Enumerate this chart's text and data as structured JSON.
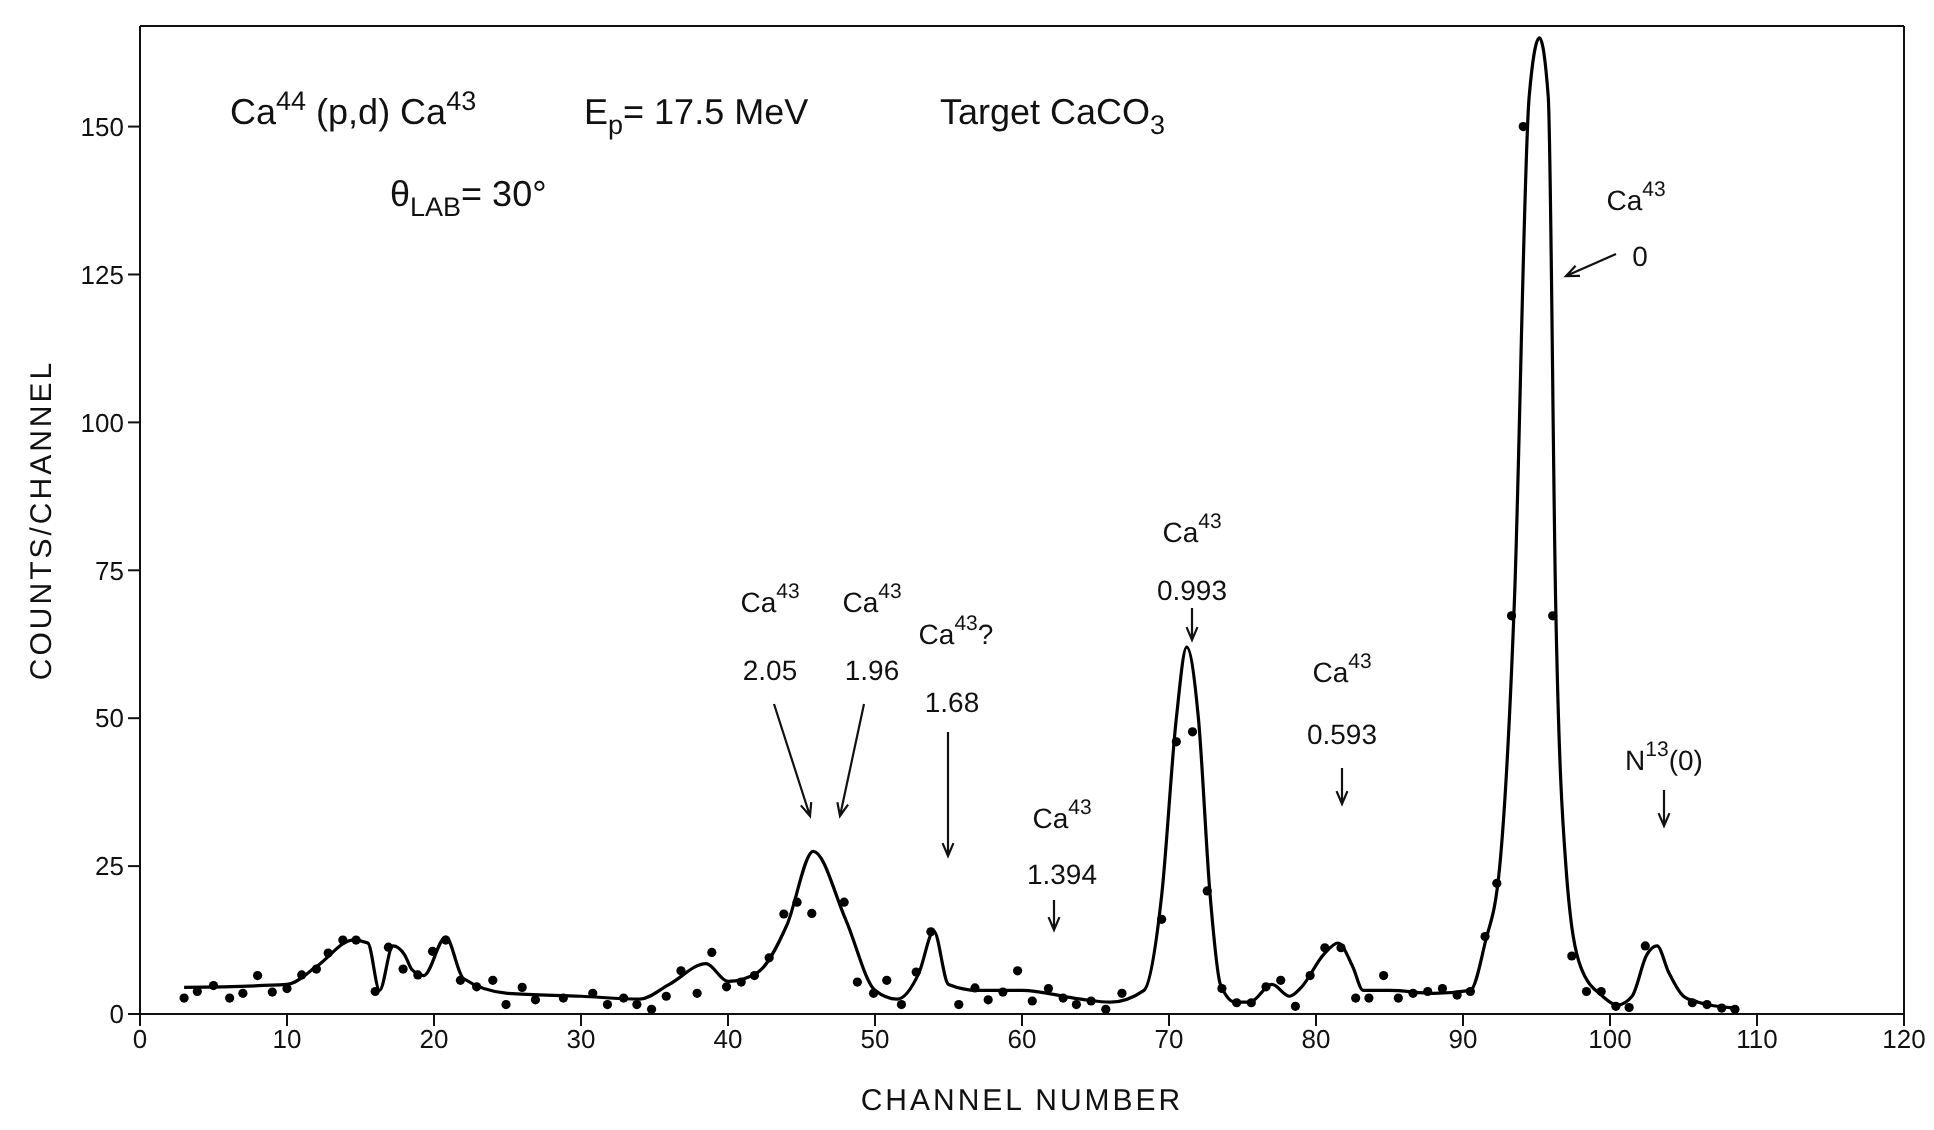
{
  "chart_data": {
    "type": "line",
    "xlabel": "CHANNEL NUMBER",
    "ylabel": "COUNTS/CHANNEL",
    "xlim": [
      0,
      120
    ],
    "xticks": [
      0,
      10,
      20,
      30,
      40,
      50,
      60,
      70,
      80,
      90,
      100,
      110,
      120
    ],
    "ylim": [
      0,
      167
    ],
    "yticks": [
      0,
      25,
      50,
      75,
      100,
      125,
      150
    ],
    "series": [
      {
        "color": "#000000",
        "marker": "none",
        "line_style": "solid",
        "x": [
          3,
          10,
          12,
          14.5,
          15.5,
          16.3,
          17.2,
          18,
          18.5,
          19.3,
          20.8,
          22,
          25,
          30,
          34,
          36,
          38.5,
          40,
          42,
          44,
          45.8,
          48,
          50,
          51.5,
          53,
          54,
          55,
          57,
          60,
          64,
          66,
          68.3,
          69.5,
          70.5,
          71.2,
          72,
          72.8,
          73.5,
          74.5,
          75.5,
          77,
          78.2,
          79,
          80.5,
          81.5,
          82.5,
          83.2,
          85,
          88,
          90.5,
          91.5,
          92.5,
          93.5,
          94.5,
          95.2,
          95.8,
          96.3,
          97,
          98,
          99.5,
          100.5,
          101.5,
          102.5,
          103.2,
          104,
          105,
          106,
          108.5
        ],
        "values": [
          4.5,
          5,
          8,
          12.5,
          12,
          4,
          11.5,
          10,
          7.5,
          6.5,
          13,
          6,
          3.5,
          3,
          2.5,
          5,
          8.5,
          5.5,
          7,
          15,
          27.5,
          16,
          4,
          2.5,
          7,
          14,
          5,
          4,
          4,
          2.5,
          2,
          4,
          20,
          50,
          62,
          50,
          20,
          5,
          2,
          2,
          5,
          3,
          4.5,
          10,
          12,
          8,
          4,
          4,
          3.5,
          4,
          12,
          25,
          70,
          155,
          165,
          155,
          70,
          25,
          8,
          3,
          1.5,
          3,
          10,
          11.5,
          7,
          3,
          2,
          1
        ]
      },
      {
        "type": "scatter",
        "color": "#000000",
        "marker": "circle",
        "x": [
          3.0,
          3.9,
          5.0,
          6.1,
          7.0,
          8.0,
          9.0,
          10.0,
          11.0,
          12.0,
          12.8,
          13.8,
          14.7,
          16.0,
          16.9,
          17.9,
          18.9,
          19.9,
          20.8,
          21.8,
          22.9,
          24.0,
          24.9,
          26.0,
          26.9,
          28.8,
          30.8,
          31.8,
          32.9,
          33.8,
          34.8,
          35.8,
          36.8,
          37.9,
          38.9,
          39.9,
          40.9,
          41.8,
          42.8,
          43.8,
          44.7,
          45.7,
          47.9,
          48.8,
          49.9,
          50.8,
          51.8,
          52.8,
          53.8,
          55.7,
          56.8,
          57.7,
          58.7,
          59.7,
          60.7,
          61.8,
          62.8,
          63.7,
          64.7,
          65.7,
          66.8,
          69.5,
          70.5,
          71.6,
          72.6,
          73.6,
          74.6,
          75.6,
          76.6,
          77.6,
          78.6,
          79.6,
          80.6,
          81.7,
          82.7,
          83.6,
          84.6,
          85.6,
          86.6,
          87.6,
          88.6,
          89.6,
          90.5,
          91.5,
          92.3,
          93.3,
          94.1,
          96.1,
          97.4,
          98.4,
          99.4,
          100.4,
          101.3,
          102.4,
          105.6,
          106.6,
          107.6,
          108.5
        ],
        "values": [
          2.7,
          3.8,
          4.8,
          2.7,
          3.5,
          6.5,
          3.7,
          4.3,
          6.6,
          7.6,
          10.3,
          12.5,
          12.5,
          3.8,
          11.3,
          7.6,
          6.6,
          10.6,
          12.5,
          5.7,
          4.6,
          5.7,
          1.6,
          4.5,
          2.4,
          2.7,
          3.5,
          1.6,
          2.7,
          1.6,
          0.8,
          3.0,
          7.3,
          3.5,
          10.4,
          4.6,
          5.4,
          6.5,
          9.5,
          16.9,
          18.9,
          17.0,
          18.9,
          5.4,
          3.5,
          5.7,
          1.6,
          7.1,
          13.9,
          1.6,
          4.4,
          2.4,
          3.7,
          7.3,
          2.2,
          4.3,
          2.7,
          1.6,
          2.2,
          0.8,
          3.5,
          16,
          46,
          47.7,
          20.8,
          4.3,
          1.9,
          1.9,
          4.6,
          5.7,
          1.3,
          6.5,
          11.2,
          11.2,
          2.7,
          2.7,
          6.5,
          2.7,
          3.5,
          3.8,
          4.3,
          3.2,
          3.8,
          13.1,
          22.1,
          67.3,
          150,
          67.3,
          9.8,
          3.8,
          3.8,
          1.3,
          1.1,
          11.5,
          1.9,
          1.6,
          1.0,
          0.8
        ]
      }
    ],
    "annotations": [
      "Ca$^{44}$ (p,d) Ca$^{43}$",
      "E$_{p}$= 17.5 MeV",
      "Target CaCO$_{3}$",
      "θ$_{LAB}$= 30°",
      "Ca$^{43}$",
      "2.05",
      "Ca$^{43}$",
      "1.96",
      "Ca$^{43}$?",
      "1.68",
      "Ca$^{43}$",
      "1.394",
      "Ca$^{43}$",
      "0.993",
      "Ca$^{43}$",
      "0.593",
      "N$^{13}$(0)",
      "Ca$^{43}$",
      "0"
    ]
  }
}
